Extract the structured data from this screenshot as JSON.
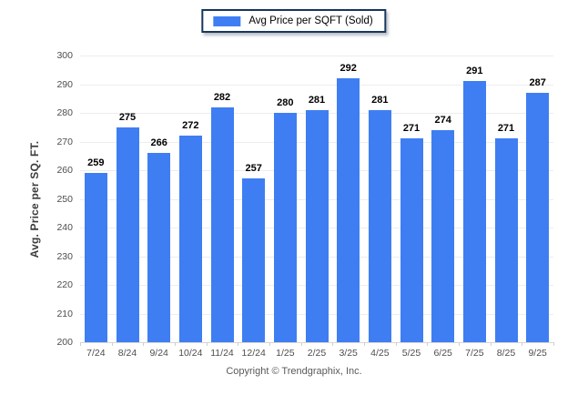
{
  "legend": {
    "label": "Avg Price per SQFT (Sold)"
  },
  "footer": {
    "copyright": "Copyright © Trendgraphix, Inc."
  },
  "chart_data": {
    "type": "bar",
    "title": "",
    "xlabel": "",
    "ylabel": "Avg. Price per SQ. FT.",
    "categories": [
      "7/24",
      "8/24",
      "9/24",
      "10/24",
      "11/24",
      "12/24",
      "1/25",
      "2/25",
      "3/25",
      "4/25",
      "5/25",
      "6/25",
      "7/25",
      "8/25",
      "9/25"
    ],
    "series": [
      {
        "name": "Avg Price per SQFT (Sold)",
        "values": [
          259,
          275,
          266,
          272,
          282,
          257,
          280,
          281,
          292,
          281,
          271,
          274,
          291,
          271,
          287
        ]
      }
    ],
    "ylim": [
      200,
      300
    ],
    "ytick_step": 10,
    "grid": true,
    "legend_position": "top-center",
    "bar_color": "#3e7ef2",
    "value_labels": true
  }
}
